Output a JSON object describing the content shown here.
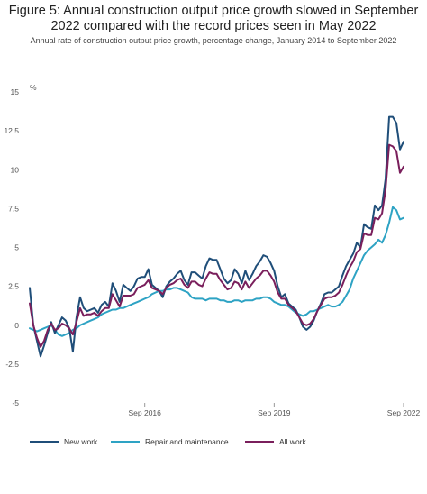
{
  "title": "Figure 5: Annual construction output price growth slowed in September 2022 compared with the record prices seen in May 2022",
  "subtitle": "Annual rate of construction output price growth, percentage change, January 2014 to September 2022",
  "chart_data": {
    "type": "line",
    "ylabel": "%",
    "ylim": [
      -5,
      15
    ],
    "yticks": [
      "15",
      "12.5",
      "10",
      "7.5",
      "5",
      "2.5",
      "0",
      "-2.5",
      "-5"
    ],
    "xticks": [
      {
        "label": "Sep 2016",
        "month_index": 32
      },
      {
        "label": "Sep 2019",
        "month_index": 68
      },
      {
        "label": "Sep 2022",
        "month_index": 104
      }
    ],
    "x_start": "Jan 2014",
    "x_end": "Sep 2022",
    "grid": false,
    "legend_placement": "bottom",
    "series": [
      {
        "name": "New work",
        "color": "#1f4e79",
        "values": [
          2.4,
          0.0,
          -1.0,
          -2.0,
          -1.3,
          -0.5,
          0.2,
          -0.5,
          0.0,
          0.5,
          0.3,
          -0.2,
          -1.7,
          0.5,
          1.8,
          1.1,
          0.9,
          1.0,
          1.1,
          0.8,
          1.3,
          1.5,
          1.2,
          2.7,
          2.2,
          1.5,
          2.6,
          2.4,
          2.2,
          2.5,
          3.0,
          3.1,
          3.1,
          3.6,
          2.6,
          2.4,
          2.2,
          1.8,
          2.5,
          2.8,
          3.0,
          3.3,
          3.5,
          2.9,
          2.6,
          3.4,
          3.4,
          3.2,
          3.0,
          3.8,
          4.3,
          4.2,
          4.2,
          3.6,
          3.0,
          2.7,
          2.9,
          3.6,
          3.3,
          2.7,
          3.5,
          2.9,
          3.3,
          3.8,
          4.1,
          4.5,
          4.4,
          4.0,
          3.5,
          2.5,
          1.8,
          2.0,
          1.4,
          1.2,
          1.0,
          0.5,
          -0.1,
          -0.3,
          -0.1,
          0.3,
          0.9,
          1.4,
          2.0,
          2.1,
          2.1,
          2.3,
          2.5,
          3.2,
          3.8,
          4.2,
          4.6,
          5.3,
          5.0,
          6.5,
          6.3,
          6.2,
          7.7,
          7.4,
          7.7,
          9.4,
          13.4,
          13.4,
          13.0,
          11.3,
          11.8
        ]
      },
      {
        "name": "Repair and maintenance",
        "color": "#2ea3c4",
        "values": [
          -0.2,
          -0.3,
          -0.4,
          -0.3,
          -0.2,
          -0.1,
          0.0,
          -0.3,
          -0.6,
          -0.7,
          -0.6,
          -0.5,
          -0.3,
          -0.2,
          0.0,
          0.1,
          0.2,
          0.3,
          0.4,
          0.5,
          0.7,
          0.8,
          0.9,
          1.0,
          1.0,
          1.1,
          1.1,
          1.2,
          1.3,
          1.4,
          1.5,
          1.6,
          1.7,
          1.8,
          2.0,
          2.1,
          2.2,
          2.2,
          2.3,
          2.3,
          2.4,
          2.4,
          2.3,
          2.2,
          2.1,
          1.8,
          1.7,
          1.7,
          1.7,
          1.6,
          1.7,
          1.7,
          1.7,
          1.6,
          1.6,
          1.5,
          1.5,
          1.6,
          1.6,
          1.5,
          1.6,
          1.6,
          1.6,
          1.7,
          1.7,
          1.8,
          1.8,
          1.7,
          1.5,
          1.4,
          1.3,
          1.3,
          1.2,
          1.0,
          0.8,
          0.7,
          0.6,
          0.7,
          0.9,
          0.9,
          1.0,
          1.1,
          1.2,
          1.3,
          1.2,
          1.2,
          1.3,
          1.5,
          1.9,
          2.3,
          3.0,
          3.5,
          4.0,
          4.5,
          4.8,
          5.0,
          5.2,
          5.5,
          5.3,
          5.8,
          6.6,
          7.6,
          7.4,
          6.8,
          6.9
        ]
      },
      {
        "name": "All work",
        "color": "#7a1f5c",
        "values": [
          1.4,
          0.0,
          -0.8,
          -1.4,
          -1.0,
          -0.3,
          0.1,
          -0.3,
          -0.2,
          0.1,
          0.0,
          -0.2,
          -0.6,
          0.2,
          1.1,
          0.6,
          0.7,
          0.7,
          0.8,
          0.6,
          0.9,
          1.1,
          1.1,
          2.0,
          1.6,
          1.2,
          1.9,
          1.9,
          1.9,
          2.0,
          2.4,
          2.5,
          2.6,
          2.9,
          2.4,
          2.3,
          2.2,
          2.0,
          2.4,
          2.6,
          2.7,
          2.9,
          3.0,
          2.6,
          2.4,
          2.8,
          2.8,
          2.6,
          2.5,
          3.0,
          3.4,
          3.3,
          3.3,
          2.9,
          2.6,
          2.3,
          2.4,
          2.8,
          2.7,
          2.3,
          2.8,
          2.4,
          2.7,
          3.0,
          3.2,
          3.5,
          3.5,
          3.2,
          2.8,
          2.1,
          1.7,
          1.7,
          1.3,
          1.1,
          0.9,
          0.5,
          0.1,
          0.0,
          0.1,
          0.4,
          0.9,
          1.3,
          1.7,
          1.8,
          1.8,
          1.9,
          2.1,
          2.6,
          3.2,
          3.7,
          4.1,
          4.7,
          4.9,
          5.9,
          5.8,
          5.8,
          6.9,
          6.8,
          7.2,
          8.7,
          11.6,
          11.5,
          11.2,
          9.8,
          10.2
        ]
      }
    ]
  }
}
